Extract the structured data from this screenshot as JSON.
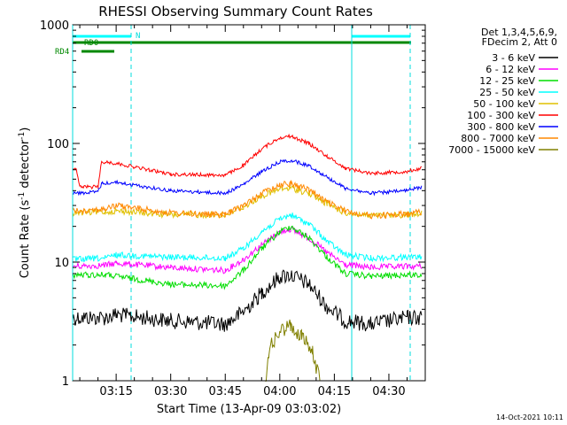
{
  "chart_data": {
    "type": "line",
    "title": "RHESSI Observing Summary Count Rates",
    "xlabel": "Start Time (13-Apr-09 03:03:02)",
    "ylabel_main": "Count Rate (s",
    "ylabel_sup1": "-1",
    "ylabel_mid": " detector",
    "ylabel_sup2": "-1",
    "ylabel_end": ")",
    "y_scale": "log",
    "ylim": [
      1,
      1000
    ],
    "xlim": [
      "03:03:02",
      "04:40:00"
    ],
    "y_ticks": [
      "1",
      "10",
      "100",
      "1000"
    ],
    "x_ticks": [
      "03:15",
      "03:30",
      "03:45",
      "04:00",
      "04:15",
      "04:30"
    ],
    "legend_header": [
      "Det 1,3,4,5,6,9,",
      "FDecim 2, Att 0"
    ],
    "legend_position": "right",
    "date_stamp": "14-Oct-2021 10:11",
    "flags": {
      "n_label": "N",
      "rd0_label": "RD0",
      "rd4_label": "RD4"
    },
    "series": [
      {
        "name": "3 - 6 keV",
        "color": "#000000",
        "points": [
          [
            "03:03",
            3.4
          ],
          [
            "03:12",
            3.4
          ],
          [
            "03:15",
            3.6
          ],
          [
            "03:30",
            3.2
          ],
          [
            "03:45",
            3.0
          ],
          [
            "03:50",
            3.8
          ],
          [
            "03:55",
            5.5
          ],
          [
            "04:00",
            7.5
          ],
          [
            "04:03",
            7.8
          ],
          [
            "04:08",
            6.5
          ],
          [
            "04:13",
            4.2
          ],
          [
            "04:18",
            3.2
          ],
          [
            "04:25",
            3.0
          ],
          [
            "04:35",
            3.4
          ],
          [
            "04:39",
            3.4
          ]
        ]
      },
      {
        "name": "6 - 12 keV",
        "color": "#ff00ff",
        "points": [
          [
            "03:03",
            9.2
          ],
          [
            "03:12",
            9.4
          ],
          [
            "03:15",
            9.8
          ],
          [
            "03:30",
            9.0
          ],
          [
            "03:45",
            8.5
          ],
          [
            "03:50",
            10.5
          ],
          [
            "03:55",
            14
          ],
          [
            "04:00",
            18
          ],
          [
            "04:03",
            19
          ],
          [
            "04:08",
            16
          ],
          [
            "04:13",
            12
          ],
          [
            "04:18",
            9.5
          ],
          [
            "04:25",
            9.0
          ],
          [
            "04:35",
            9.2
          ],
          [
            "04:39",
            9.2
          ]
        ]
      },
      {
        "name": "12 - 25 keV",
        "color": "#00dd00",
        "points": [
          [
            "03:03",
            7.8
          ],
          [
            "03:12",
            7.8
          ],
          [
            "03:15",
            7.6
          ],
          [
            "03:30",
            6.5
          ],
          [
            "03:45",
            6.3
          ],
          [
            "03:50",
            8.5
          ],
          [
            "03:55",
            13
          ],
          [
            "04:00",
            18
          ],
          [
            "04:03",
            20
          ],
          [
            "04:08",
            16
          ],
          [
            "04:13",
            11
          ],
          [
            "04:18",
            8.0
          ],
          [
            "04:25",
            7.6
          ],
          [
            "04:35",
            7.8
          ],
          [
            "04:39",
            7.8
          ]
        ]
      },
      {
        "name": "25 - 50 keV",
        "color": "#00ffff",
        "points": [
          [
            "03:03",
            10.5
          ],
          [
            "03:12",
            10.8
          ],
          [
            "03:15",
            11.5
          ],
          [
            "03:30",
            11.0
          ],
          [
            "03:45",
            10.8
          ],
          [
            "03:50",
            13
          ],
          [
            "03:55",
            18
          ],
          [
            "04:00",
            23
          ],
          [
            "04:03",
            25
          ],
          [
            "04:08",
            21
          ],
          [
            "04:13",
            15
          ],
          [
            "04:18",
            11.5
          ],
          [
            "04:25",
            10.8
          ],
          [
            "04:35",
            11
          ],
          [
            "04:39",
            11
          ]
        ]
      },
      {
        "name": "50 - 100 keV",
        "color": "#e0c000",
        "points": [
          [
            "03:03",
            26
          ],
          [
            "03:12",
            26.5
          ],
          [
            "03:15",
            27
          ],
          [
            "03:30",
            25
          ],
          [
            "03:45",
            25
          ],
          [
            "03:50",
            29
          ],
          [
            "03:55",
            36
          ],
          [
            "04:00",
            41
          ],
          [
            "04:03",
            42
          ],
          [
            "04:08",
            38
          ],
          [
            "04:13",
            31
          ],
          [
            "04:18",
            26
          ],
          [
            "04:25",
            24.5
          ],
          [
            "04:35",
            25
          ],
          [
            "04:39",
            26
          ]
        ]
      },
      {
        "name": "100 - 300 keV",
        "color": "#ff0000",
        "points": [
          [
            "03:03",
            62
          ],
          [
            "03:04",
            62
          ],
          [
            "03:05",
            43
          ],
          [
            "03:10",
            43
          ],
          [
            "03:11",
            70
          ],
          [
            "03:15",
            68
          ],
          [
            "03:30",
            55
          ],
          [
            "03:45",
            54
          ],
          [
            "03:50",
            65
          ],
          [
            "03:55",
            90
          ],
          [
            "04:00",
            112
          ],
          [
            "04:03",
            115
          ],
          [
            "04:08",
            100
          ],
          [
            "04:13",
            78
          ],
          [
            "04:18",
            62
          ],
          [
            "04:25",
            56
          ],
          [
            "04:35",
            58
          ],
          [
            "04:39",
            62
          ]
        ]
      },
      {
        "name": "300 - 800 keV",
        "color": "#0000ff",
        "points": [
          [
            "03:03",
            38
          ],
          [
            "03:10",
            39
          ],
          [
            "03:11",
            46
          ],
          [
            "03:15",
            47
          ],
          [
            "03:30",
            40
          ],
          [
            "03:45",
            38
          ],
          [
            "03:50",
            45
          ],
          [
            "03:55",
            58
          ],
          [
            "04:00",
            70
          ],
          [
            "04:03",
            72
          ],
          [
            "04:08",
            65
          ],
          [
            "04:13",
            52
          ],
          [
            "04:18",
            42
          ],
          [
            "04:25",
            38
          ],
          [
            "04:35",
            40
          ],
          [
            "04:39",
            43
          ]
        ]
      },
      {
        "name": "800 - 7000 keV",
        "color": "#ff8800",
        "points": [
          [
            "03:03",
            27
          ],
          [
            "03:12",
            28
          ],
          [
            "03:15",
            30
          ],
          [
            "03:30",
            26
          ],
          [
            "03:45",
            25
          ],
          [
            "03:50",
            30
          ],
          [
            "03:55",
            38
          ],
          [
            "04:00",
            45
          ],
          [
            "04:03",
            46
          ],
          [
            "04:08",
            41
          ],
          [
            "04:13",
            32
          ],
          [
            "04:18",
            27
          ],
          [
            "04:25",
            24.5
          ],
          [
            "04:35",
            25.5
          ],
          [
            "04:39",
            26.5
          ]
        ]
      },
      {
        "name": "7000 - 15000 keV",
        "color": "#808000",
        "points": [
          [
            "03:56",
            1.0
          ],
          [
            "03:57",
            1.8
          ],
          [
            "04:00",
            2.6
          ],
          [
            "04:03",
            2.9
          ],
          [
            "04:06",
            2.4
          ],
          [
            "04:09",
            1.7
          ],
          [
            "04:11",
            1.0
          ]
        ]
      }
    ]
  }
}
